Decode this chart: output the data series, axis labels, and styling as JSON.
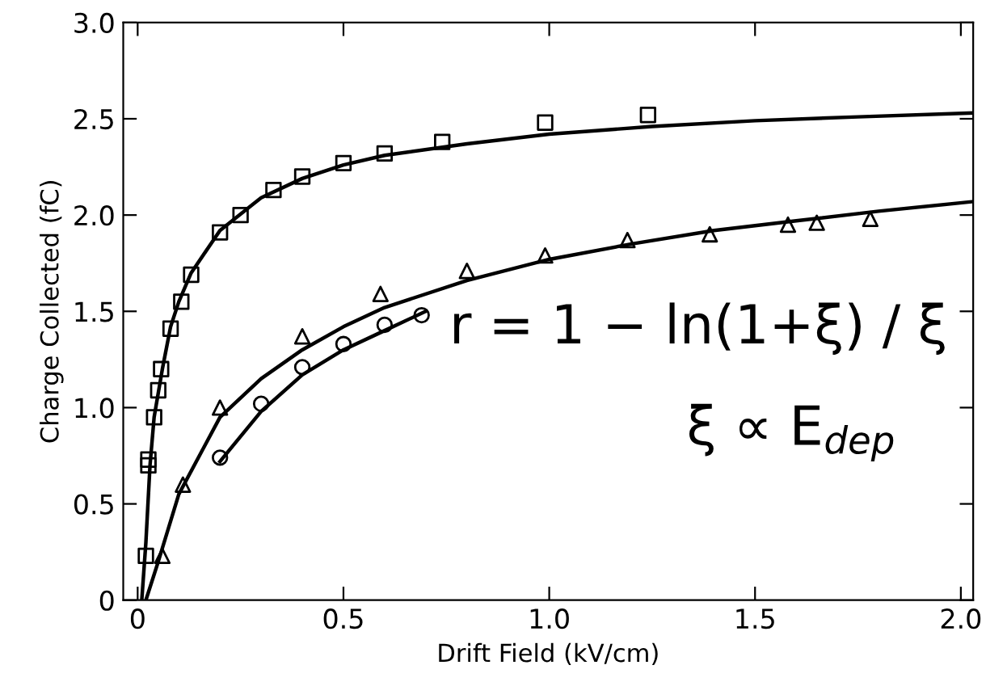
{
  "chart_data": {
    "type": "scatter",
    "xlabel": "Drift Field (kV/cm)",
    "ylabel": "Charge Collected (fC)",
    "xlim": [
      -0.035,
      2.03
    ],
    "ylim": [
      0,
      3.0
    ],
    "xticks": [
      0,
      {
        "value": 0.5,
        "label": "0.5"
      },
      {
        "value": 1.0,
        "label": "1.0"
      },
      {
        "value": 1.5,
        "label": "1.5"
      },
      {
        "value": 2.0,
        "label": "2.0"
      }
    ],
    "yticks": [
      0,
      {
        "value": 0.5,
        "label": "0.5"
      },
      {
        "value": 1.0,
        "label": "1.0"
      },
      {
        "value": 1.5,
        "label": "1.5"
      },
      {
        "value": 2.0,
        "label": "2.0"
      },
      {
        "value": 2.5,
        "label": "2.5"
      },
      {
        "value": 3.0,
        "label": "3.0"
      }
    ],
    "grid": false,
    "legend": false,
    "series": [
      {
        "marker": "square",
        "color": "#000000",
        "x": [
          0.02,
          0.026,
          0.026,
          0.04,
          0.05,
          0.057,
          0.08,
          0.106,
          0.13,
          0.2,
          0.25,
          0.33,
          0.4,
          0.5,
          0.6,
          0.74,
          0.99,
          1.24
        ],
        "values": [
          0.23,
          0.7,
          0.73,
          0.95,
          1.09,
          1.2,
          1.41,
          1.55,
          1.69,
          1.91,
          2.0,
          2.13,
          2.2,
          2.27,
          2.32,
          2.38,
          2.48,
          2.52
        ]
      },
      {
        "marker": "triangle",
        "color": "#000000",
        "x": [
          0.06,
          0.11,
          0.2,
          0.4,
          0.59,
          0.8,
          0.99,
          1.19,
          1.39,
          1.58,
          1.65,
          1.78
        ],
        "values": [
          0.23,
          0.6,
          1.0,
          1.37,
          1.59,
          1.71,
          1.79,
          1.87,
          1.9,
          1.95,
          1.96,
          1.98
        ]
      },
      {
        "marker": "circle",
        "color": "#000000",
        "x": [
          0.2,
          0.3,
          0.4,
          0.5,
          0.6,
          0.69
        ],
        "values": [
          0.74,
          1.02,
          1.21,
          1.33,
          1.43,
          1.48
        ]
      },
      {
        "type": "line",
        "color": "#000000",
        "x": [
          0.01,
          0.02,
          0.03,
          0.04,
          0.06,
          0.08,
          0.1,
          0.13,
          0.2,
          0.3,
          0.4,
          0.5,
          0.6,
          0.8,
          1.0,
          1.25,
          1.5,
          1.75,
          2.03
        ],
        "values": [
          0,
          0.3,
          0.7,
          0.95,
          1.2,
          1.42,
          1.55,
          1.7,
          1.92,
          2.09,
          2.19,
          2.26,
          2.31,
          2.37,
          2.42,
          2.46,
          2.49,
          2.51,
          2.53
        ]
      },
      {
        "type": "line",
        "color": "#000000",
        "x": [
          0.02,
          0.05,
          0.1,
          0.2,
          0.3,
          0.4,
          0.5,
          0.6,
          0.8,
          1.0,
          1.2,
          1.4,
          1.6,
          1.8,
          2.03
        ],
        "values": [
          0,
          0.2,
          0.55,
          0.95,
          1.15,
          1.3,
          1.42,
          1.52,
          1.66,
          1.77,
          1.85,
          1.92,
          1.97,
          2.02,
          2.07
        ]
      },
      {
        "type": "line",
        "color": "#000000",
        "x": [
          0.2,
          0.3,
          0.4,
          0.5,
          0.6,
          0.7
        ],
        "values": [
          0.72,
          0.98,
          1.17,
          1.3,
          1.4,
          1.5
        ]
      }
    ],
    "annotations": [
      "r = 1 − ln(1+ξ) / ξ",
      "ξ ∝ E$_{dep}$"
    ]
  }
}
